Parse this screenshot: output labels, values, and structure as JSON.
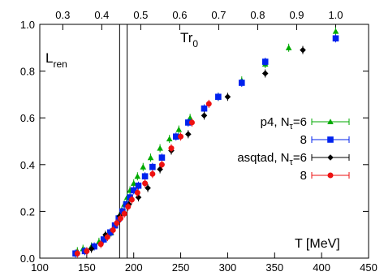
{
  "chart_data": {
    "type": "scatter",
    "title": "",
    "xlabel": "T [MeV]",
    "ylabel": "",
    "xlim": [
      100,
      450
    ],
    "ylim": [
      0,
      1.0
    ],
    "xticks": [
      100,
      150,
      200,
      250,
      300,
      350,
      400,
      450
    ],
    "yticks": [
      0.0,
      0.2,
      0.4,
      0.6,
      0.8,
      1.0
    ],
    "top_axis": {
      "ticks": [
        0.3,
        0.4,
        0.5,
        0.6,
        0.7,
        0.8,
        0.9,
        1.0
      ],
      "tick_positions_T": [
        124.5,
        166,
        207.5,
        249,
        290.5,
        332,
        373.5,
        415
      ]
    },
    "vertical_lines_T": [
      185,
      193
    ],
    "annotations": {
      "left_main": "L",
      "left_sub": "ren",
      "right_main": "Tr",
      "right_sub": "0"
    },
    "legend_position": "right",
    "grid": false,
    "series": [
      {
        "name": "p4, N",
        "name_sub": "τ",
        "name_suffix": "=6",
        "color": "#00aa00",
        "marker": "triangle",
        "x": [
          140,
          146,
          155,
          163,
          170,
          176,
          180,
          184,
          187,
          190,
          193,
          196,
          200,
          204,
          210,
          218,
          228,
          238,
          248,
          260,
          275,
          290,
          315,
          340,
          365,
          415
        ],
        "y": [
          0.03,
          0.04,
          0.05,
          0.07,
          0.09,
          0.11,
          0.14,
          0.17,
          0.2,
          0.23,
          0.26,
          0.29,
          0.32,
          0.35,
          0.39,
          0.43,
          0.47,
          0.51,
          0.55,
          0.6,
          0.64,
          0.69,
          0.76,
          0.83,
          0.9,
          0.97
        ]
      },
      {
        "name": "8",
        "color": "#0022ee",
        "marker": "square",
        "x": [
          138,
          148,
          158,
          168,
          175,
          180,
          184,
          188,
          192,
          196,
          200,
          205,
          212,
          220,
          230,
          245,
          258,
          275,
          290,
          315,
          340,
          415
        ],
        "y": [
          0.02,
          0.03,
          0.05,
          0.08,
          0.11,
          0.14,
          0.17,
          0.2,
          0.23,
          0.26,
          0.29,
          0.31,
          0.35,
          0.39,
          0.43,
          0.52,
          0.58,
          0.64,
          0.69,
          0.75,
          0.84,
          0.94
        ]
      },
      {
        "name": "asqtad, N",
        "name_sub": "τ",
        "name_suffix": "=6",
        "color": "#000000",
        "marker": "diamond",
        "x": [
          155,
          170,
          185,
          195,
          205,
          215,
          228,
          240,
          258,
          275,
          300,
          340,
          380
        ],
        "y": [
          0.04,
          0.1,
          0.18,
          0.23,
          0.26,
          0.3,
          0.38,
          0.46,
          0.53,
          0.61,
          0.69,
          0.79,
          0.89
        ]
      },
      {
        "name": "8",
        "color": "#ee1111",
        "marker": "circle",
        "x": [
          140,
          150,
          165,
          172,
          178,
          182,
          186,
          190,
          194,
          198,
          204,
          212,
          220,
          230,
          240,
          250,
          262,
          280
        ],
        "y": [
          0.02,
          0.03,
          0.06,
          0.09,
          0.12,
          0.15,
          0.17,
          0.19,
          0.22,
          0.25,
          0.28,
          0.32,
          0.36,
          0.4,
          0.47,
          0.52,
          0.58,
          0.66
        ]
      }
    ]
  }
}
